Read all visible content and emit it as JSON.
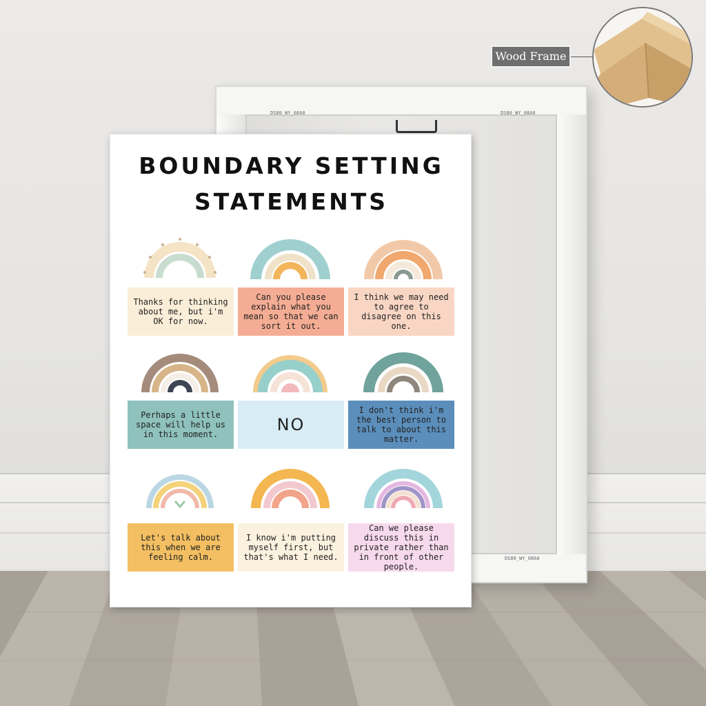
{
  "callout": {
    "label": "Wood Frame"
  },
  "frame_back": {
    "stamp_left": "DS80_WY_08A0",
    "stamp_right": "DS80_WY_08A0",
    "stamp_bottom": "DS80_WY_08A0"
  },
  "poster": {
    "title_line1": "BOUNDARY SETTING",
    "title_line2": "STATEMENTS",
    "statements": [
      "Thanks for thinking about me, but i'm OK for now.",
      "Can you please explain what you mean so that we can sort it out.",
      "I think we may need to agree to disagree on this one.",
      "Perhaps a little space will help us in this moment.",
      "NO",
      "I don't think i'm the best person to talk to about this matter.",
      "Let's talk about this when we are feeling calm.",
      "I know i'm putting myself first, but that's what I need.",
      "Can we please discuss this in private rather than in front of other people."
    ],
    "colors": {
      "cream": "#fbeed8",
      "salmon": "#f4ad94",
      "peach": "#f9d6c4",
      "teal": "#8fc2bd",
      "sky": "#d8ecf6",
      "blue": "#5b8ebb",
      "mustard": "#f3bf62",
      "ivory": "#fbf1df",
      "pink": "#f6d9ec"
    }
  }
}
